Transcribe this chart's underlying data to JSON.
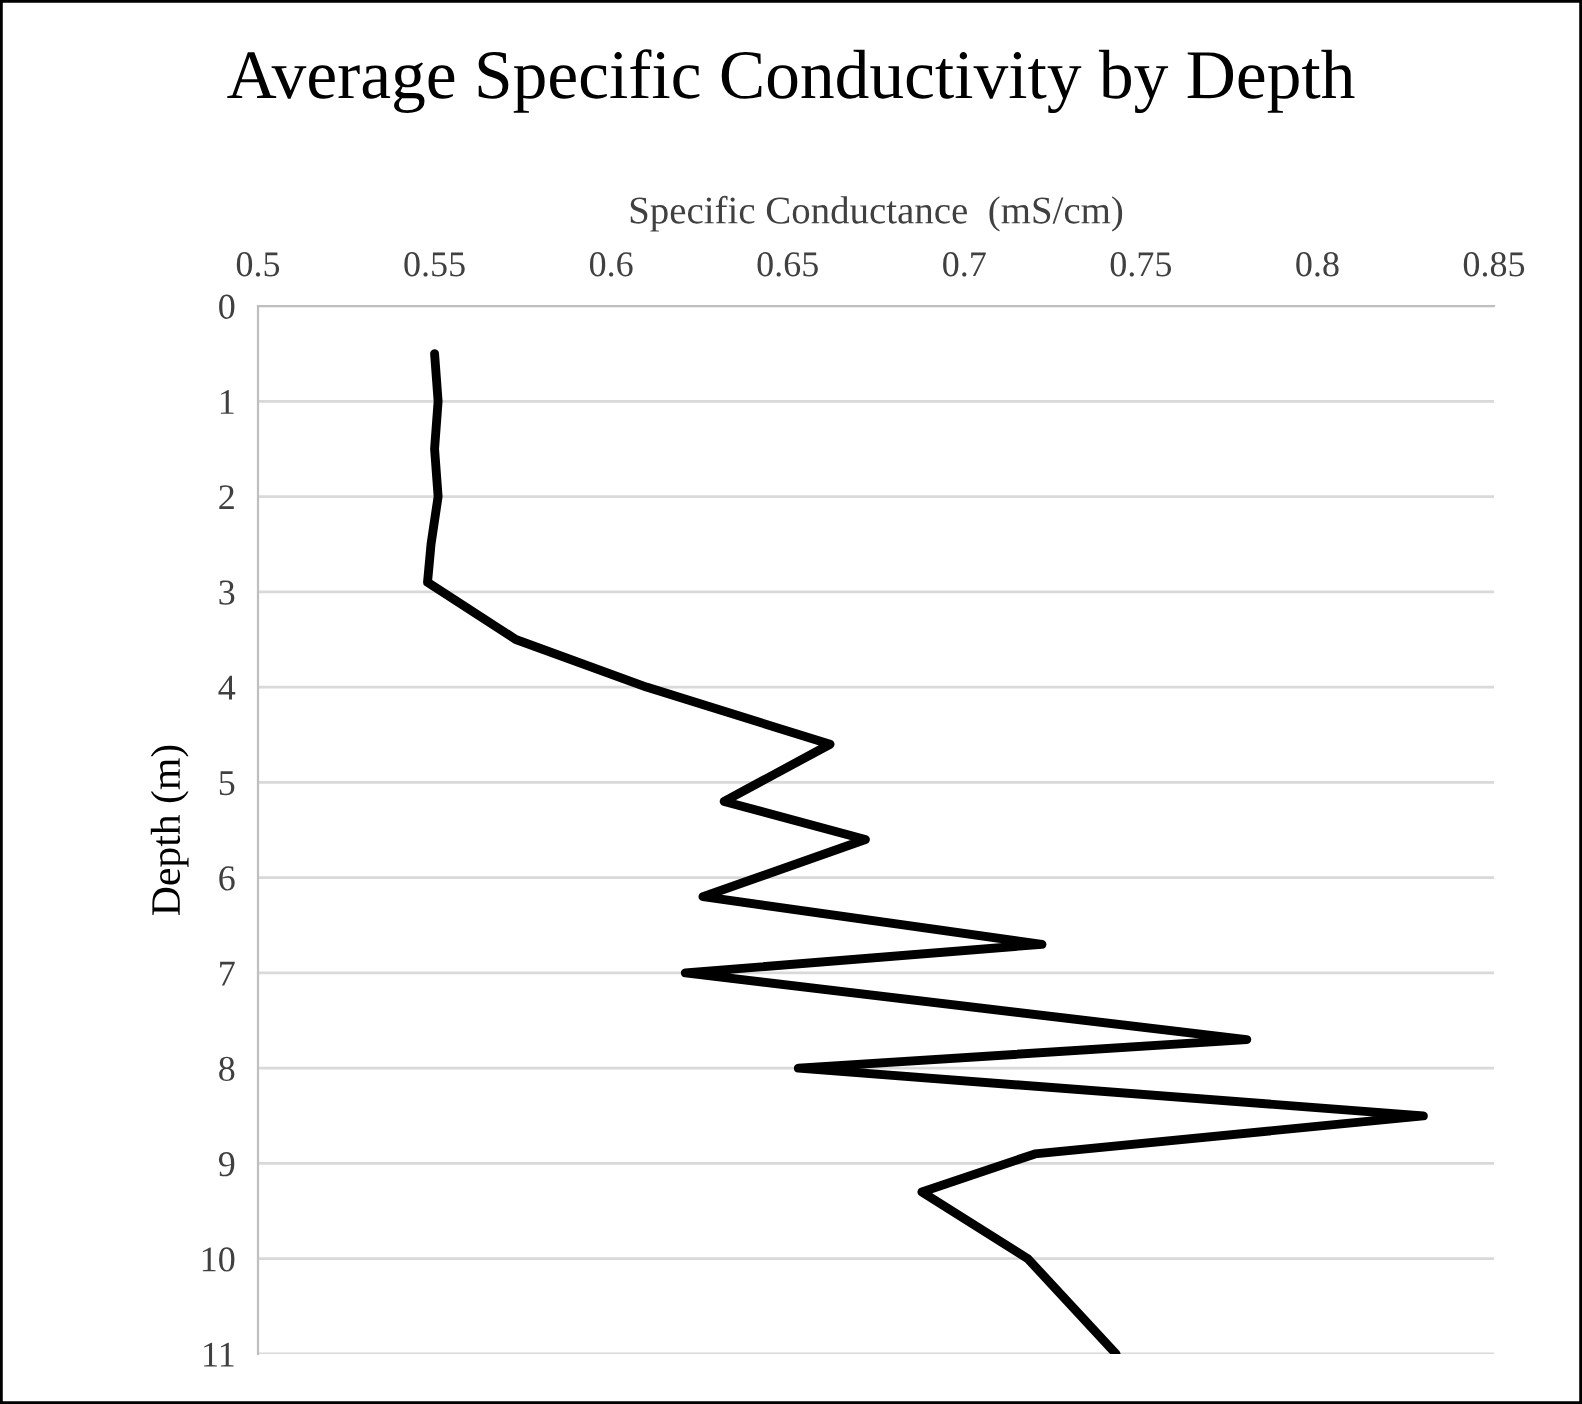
{
  "chart_data": {
    "type": "line",
    "title": "Average Specific Conductivity by Depth",
    "xlabel": "Specific Conductance  (mS/cm)",
    "ylabel": "Depth (m)",
    "series": [
      {
        "color": "#000000",
        "x": [
          0.55,
          0.551,
          0.55,
          0.551,
          0.549,
          0.548,
          0.573,
          0.61,
          0.662,
          0.632,
          0.672,
          0.626,
          0.722,
          0.621,
          0.78,
          0.653,
          0.83,
          0.72,
          0.688,
          0.718,
          0.743
        ],
        "values": [
          0.5,
          1,
          1.5,
          2,
          2.5,
          2.9,
          3.5,
          4,
          4.6,
          5.2,
          5.6,
          6.2,
          6.7,
          7.0,
          7.7,
          8.0,
          8.5,
          8.9,
          9.3,
          10,
          11
        ]
      }
    ],
    "xlim": [
      0.5,
      0.85
    ],
    "xticks": [
      0.5,
      0.55,
      0.6,
      0.65,
      0.7,
      0.75,
      0.8,
      0.85
    ],
    "ylim": [
      11,
      0
    ],
    "yticks": [
      0,
      1,
      2,
      3,
      4,
      5,
      6,
      7,
      8,
      9,
      10,
      11
    ],
    "grid": "y",
    "marker": "none",
    "line_style": "solid",
    "legend": false
  }
}
